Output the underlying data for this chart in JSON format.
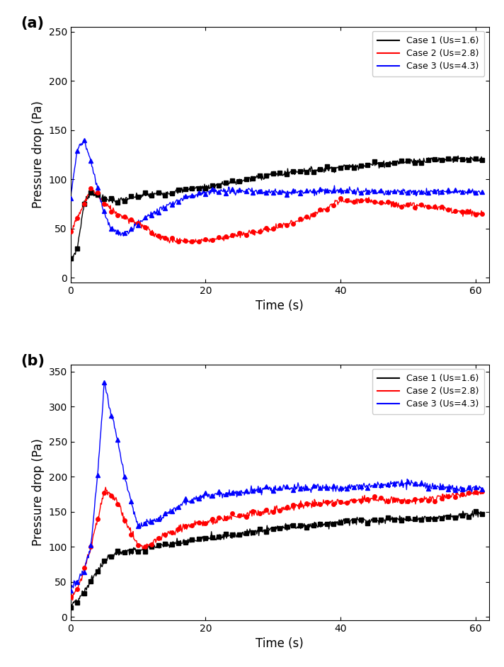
{
  "xlabel": "Time (s)",
  "ylabel": "Pressure drop (Pa)",
  "legend_labels": [
    "Case 1 (Us=1.6)",
    "Case 2 (Us=2.8)",
    "Case 3 (Us=4.3)"
  ],
  "colors": [
    "black",
    "red",
    "blue"
  ],
  "markers": [
    "s",
    "o",
    "^"
  ],
  "xlim": [
    0,
    62
  ],
  "ylim_a": [
    -5,
    255
  ],
  "ylim_b": [
    -5,
    360
  ],
  "yticks_a": [
    0,
    50,
    100,
    150,
    200,
    250
  ],
  "yticks_b": [
    0,
    50,
    100,
    150,
    200,
    250,
    300,
    350
  ],
  "xticks": [
    0,
    20,
    40,
    60
  ],
  "panel_labels": [
    "(a)",
    "(b)"
  ],
  "marker_interval": 1.0,
  "marker_size": 4,
  "line_width": 1.0,
  "noise_seed_a": 7,
  "noise_seed_b": 13,
  "noise_scale_a": 1.5,
  "noise_scale_b": 2.5,
  "figsize": [
    7.12,
    9.42
  ],
  "dpi": 100
}
